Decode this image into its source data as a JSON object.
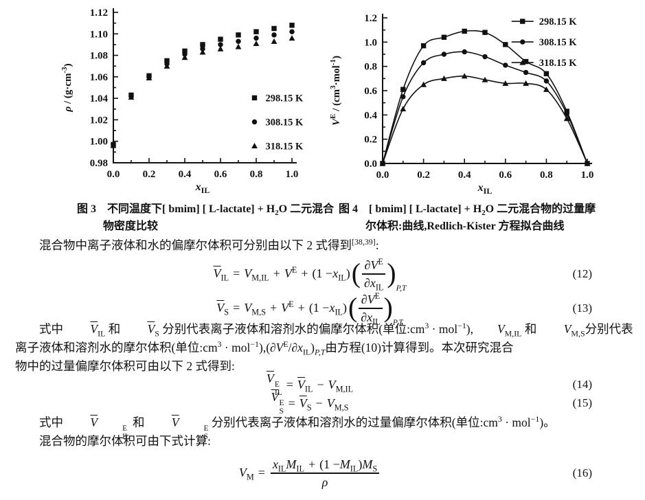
{
  "page": {
    "bg": "#ffffff",
    "ink": "#111111"
  },
  "captions": {
    "fig3": {
      "line1": [
        {
          "t": "b",
          "v": "图 3"
        },
        {
          "t": "text",
          "v": "　不同温度下[ bmim] [ L-lactate] + H"
        },
        {
          "t": "sub",
          "v": "2"
        },
        {
          "t": "text",
          "v": "O 二元混合"
        }
      ],
      "line2": [
        {
          "t": "text",
          "v": "物密度比较"
        }
      ]
    },
    "fig4": {
      "line1": [
        {
          "t": "b",
          "v": "图 4"
        },
        {
          "t": "text",
          "v": "　[ bmim] [ L-lactate] + H"
        },
        {
          "t": "sub",
          "v": "2"
        },
        {
          "t": "text",
          "v": "O 二元混合物的过量摩"
        }
      ],
      "line2": [
        {
          "t": "text",
          "v": "尔体积:曲线,Redlich-Kister 方程拟合曲线"
        }
      ]
    }
  },
  "paragraphs": {
    "p1": [
      {
        "t": "text",
        "v": "混合物中离子液体和水的偏摩尔体积可分别由以下 2 式得到"
      },
      {
        "t": "sup",
        "v": "[38,39]"
      },
      {
        "t": "text",
        "v": ":"
      }
    ],
    "p2l1": [
      {
        "t": "text",
        "v": "式中 "
      },
      {
        "t": "var",
        "base": "V",
        "bar": true,
        "sub": "IL"
      },
      {
        "t": "text",
        "v": " 和 "
      },
      {
        "t": "var",
        "base": "V",
        "bar": true,
        "sub": "S"
      },
      {
        "t": "text",
        "v": " 分别代表离子液体和溶剂水的偏摩尔体积(单位:cm"
      },
      {
        "t": "sup",
        "v": "3"
      },
      {
        "t": "text",
        "v": " · mol"
      },
      {
        "t": "sup",
        "v": "−1"
      },
      {
        "t": "text",
        "v": "),"
      },
      {
        "t": "var",
        "base": "V",
        "sub": "M,IL"
      },
      {
        "t": "text",
        "v": " 和 "
      },
      {
        "t": "var",
        "base": "V",
        "sub": "M,S"
      },
      {
        "t": "text",
        "v": "分别代表"
      }
    ],
    "p2l2": [
      {
        "t": "text",
        "v": "离子液体和溶剂水的摩尔体积(单位:cm"
      },
      {
        "t": "sup",
        "v": "3"
      },
      {
        "t": "text",
        "v": " · mol"
      },
      {
        "t": "sup",
        "v": "−1"
      },
      {
        "t": "text",
        "v": "),("
      },
      {
        "t": "var",
        "base": "∂V",
        "sup": "E"
      },
      {
        "t": "text",
        "v": "/"
      },
      {
        "t": "var",
        "base": "∂x",
        "sub": "IL"
      },
      {
        "t": "text",
        "v": ")"
      },
      {
        "t": "sub",
        "v": "P,T",
        "it": true
      },
      {
        "t": "text",
        "v": "由方程(10)计算得到。本次研究混合"
      }
    ],
    "p2l3": [
      {
        "t": "text",
        "v": "物中的过量偏摩尔体积可由以下 2 式得到:"
      }
    ],
    "p3": [
      {
        "t": "text",
        "v": "式中 "
      },
      {
        "t": "var",
        "base": "V",
        "bar": true,
        "sup": "E",
        "sub": "IL"
      },
      {
        "t": "text",
        "v": " 和 "
      },
      {
        "t": "var",
        "base": "V",
        "bar": true,
        "sup": "E",
        "sub": "S"
      },
      {
        "t": "text",
        "v": " 分别代表离子液体和溶剂水的过量偏摩尔体积(单位:cm"
      },
      {
        "t": "sup",
        "v": "3"
      },
      {
        "t": "text",
        "v": " · mol"
      },
      {
        "t": "sup",
        "v": "−1"
      },
      {
        "t": "text",
        "v": ")。"
      }
    ],
    "p4": [
      {
        "t": "text",
        "v": "混合物的摩尔体积可由下式计算:"
      }
    ]
  },
  "equations": [
    {
      "num": "(12)",
      "tokens": [
        {
          "t": "var",
          "base": "V",
          "bar": true,
          "sub": "IL"
        },
        {
          "t": "op",
          "v": "="
        },
        {
          "t": "var",
          "base": "V",
          "sub": "M,IL"
        },
        {
          "t": "op",
          "v": "+"
        },
        {
          "t": "var",
          "base": "V",
          "sup": "E"
        },
        {
          "t": "op",
          "v": "+"
        },
        {
          "t": "plain",
          "v": "(1 − "
        },
        {
          "t": "var",
          "base": "x",
          "sub": "IL"
        },
        {
          "t": "plain",
          "v": ")"
        },
        {
          "t": "pfrac",
          "num": [
            {
              "t": "var",
              "base": "∂V",
              "sup": "E"
            }
          ],
          "den": [
            {
              "t": "var",
              "base": "∂x",
              "sub": "IL"
            }
          ],
          "sub": "P,T"
        }
      ]
    },
    {
      "num": "(13)",
      "tokens": [
        {
          "t": "var",
          "base": "V",
          "bar": true,
          "sub": "S"
        },
        {
          "t": "op",
          "v": "="
        },
        {
          "t": "var",
          "base": "V",
          "sub": "M,S"
        },
        {
          "t": "op",
          "v": "+"
        },
        {
          "t": "var",
          "base": "V",
          "sup": "E"
        },
        {
          "t": "op",
          "v": "+"
        },
        {
          "t": "plain",
          "v": "(1 − "
        },
        {
          "t": "var",
          "base": "x",
          "sub": "IL"
        },
        {
          "t": "plain",
          "v": ")"
        },
        {
          "t": "pfrac",
          "num": [
            {
              "t": "var",
              "base": "∂V",
              "sup": "E"
            }
          ],
          "den": [
            {
              "t": "var",
              "base": "∂x",
              "sub": "IL"
            }
          ],
          "sub": "P,T"
        }
      ]
    },
    {
      "num": "(14)",
      "tokens": [
        {
          "t": "var",
          "base": "V",
          "bar": true,
          "sup": "E",
          "sub": "IL"
        },
        {
          "t": "op",
          "v": "="
        },
        {
          "t": "var",
          "base": "V",
          "bar": true,
          "sub": "IL"
        },
        {
          "t": "op",
          "v": "−"
        },
        {
          "t": "var",
          "base": "V",
          "sub": "M,IL"
        }
      ]
    },
    {
      "num": "(15)",
      "tokens": [
        {
          "t": "var",
          "base": "V",
          "bar": true,
          "sup": "E",
          "sub": "S"
        },
        {
          "t": "op",
          "v": "="
        },
        {
          "t": "var",
          "base": "V",
          "bar": true,
          "sub": "S"
        },
        {
          "t": "op",
          "v": "−"
        },
        {
          "t": "var",
          "base": "V",
          "sub": "M,S"
        }
      ]
    },
    {
      "num": "(16)",
      "tokens": [
        {
          "t": "var",
          "base": "V",
          "sub": "M"
        },
        {
          "t": "op",
          "v": "="
        },
        {
          "t": "frac",
          "num": [
            {
              "t": "var",
              "base": "x",
              "sub": "IL"
            },
            {
              "t": "var",
              "base": "M",
              "sub": "IL"
            },
            {
              "t": "op",
              "v": "+"
            },
            {
              "t": "plain",
              "v": "(1 − "
            },
            {
              "t": "var",
              "base": "M",
              "sub": "IL"
            },
            {
              "t": "plain",
              "v": ")"
            },
            {
              "t": "var",
              "base": "M",
              "sub": "S"
            }
          ],
          "den": [
            {
              "t": "var",
              "base": "ρ"
            }
          ]
        }
      ]
    }
  ],
  "chart_data": [
    {
      "type": "scatter",
      "title": "",
      "xlabel_parts": [
        {
          "v": "x",
          "it": true
        },
        {
          "v": "IL",
          "sub": true
        }
      ],
      "ylabel_parts": [
        {
          "v": "ρ",
          "it": true
        },
        {
          "v": " / (g·cm"
        },
        {
          "v": "-3",
          "sup": true
        },
        {
          "v": ")"
        }
      ],
      "xlim": [
        0,
        1
      ],
      "ylim": [
        0.98,
        1.12
      ],
      "xtick_labels": [
        "0.0",
        "0.2",
        "0.4",
        "0.6",
        "0.8",
        "1.0"
      ],
      "ytick_labels": [
        "0.98",
        "1.00",
        "1.02",
        "1.04",
        "1.06",
        "1.08",
        "1.10",
        "1.12"
      ],
      "grid": false,
      "fit_curves": false,
      "legend": {
        "fx": 0.775,
        "fy": 0.55,
        "line": false,
        "spacing": 35
      },
      "x": [
        0,
        0.1,
        0.2,
        0.3,
        0.4,
        0.5,
        0.6,
        0.7,
        0.8,
        0.9,
        1.0
      ],
      "series": [
        {
          "name": "298.15 K",
          "marker": "square",
          "values": [
            0.997,
            1.043,
            1.061,
            1.075,
            1.084,
            1.09,
            1.095,
            1.099,
            1.102,
            1.105,
            1.108
          ]
        },
        {
          "name": "308.15 K",
          "marker": "circle",
          "values": [
            0.997,
            1.042,
            1.06,
            1.072,
            1.081,
            1.086,
            1.09,
            1.093,
            1.096,
            1.099,
            1.102
          ]
        },
        {
          "name": "318.15 K",
          "marker": "triangle",
          "values": [
            0.996,
            1.041,
            1.059,
            1.07,
            1.078,
            1.083,
            1.086,
            1.088,
            1.091,
            1.093,
            1.096
          ]
        }
      ]
    },
    {
      "type": "scatter-line",
      "title": "",
      "xlabel_parts": [
        {
          "v": "x",
          "it": true
        },
        {
          "v": "IL",
          "sub": true
        }
      ],
      "ylabel_parts": [
        {
          "v": "V",
          "it": true
        },
        {
          "v": "E",
          "sup": true
        },
        {
          "v": " / (cm"
        },
        {
          "v": "3",
          "sup": true
        },
        {
          "v": "·mol"
        },
        {
          "v": "-1",
          "sup": true
        },
        {
          "v": ")"
        }
      ],
      "xlim": [
        0,
        1
      ],
      "ylim": [
        0,
        1.2
      ],
      "xtick_labels": [
        "0.0",
        "0.2",
        "0.4",
        "0.6",
        "0.8",
        "1.0"
      ],
      "ytick_labels": [
        "0.0",
        "0.2",
        "0.4",
        "0.6",
        "0.8",
        "1.0",
        "1.2"
      ],
      "grid": false,
      "fit_curves": true,
      "legend": {
        "fx": 0.63,
        "fy": 0.005,
        "line": true,
        "spacing": 30
      },
      "x": [
        0,
        0.1,
        0.2,
        0.3,
        0.4,
        0.5,
        0.6,
        0.7,
        0.8,
        0.9,
        1.0
      ],
      "series": [
        {
          "name": "298.15 K",
          "marker": "square",
          "values": [
            0,
            0.61,
            0.97,
            1.04,
            1.09,
            1.08,
            0.98,
            0.84,
            0.74,
            0.43,
            0
          ]
        },
        {
          "name": "308.15 K",
          "marker": "circle",
          "values": [
            0,
            0.55,
            0.83,
            0.9,
            0.92,
            0.88,
            0.81,
            0.75,
            0.68,
            0.41,
            0
          ]
        },
        {
          "name": "318.15 K",
          "marker": "triangle",
          "values": [
            0,
            0.45,
            0.65,
            0.7,
            0.72,
            0.69,
            0.66,
            0.66,
            0.61,
            0.37,
            0
          ]
        }
      ]
    }
  ]
}
